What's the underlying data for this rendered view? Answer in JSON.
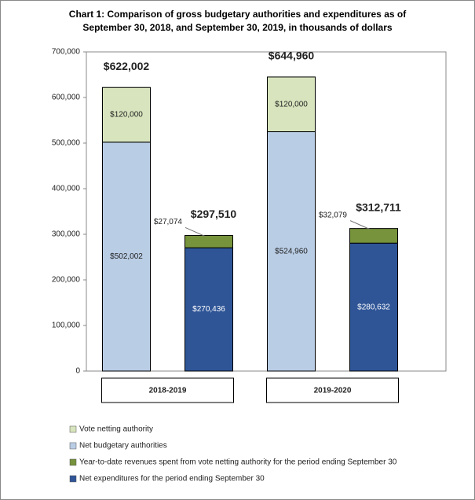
{
  "chart_data": {
    "type": "stacked-bar",
    "title": "Chart 1: Comparison of gross budgetary authorities and expenditures as of September 30, 2018, and September 30, 2019, in thousands of dollars",
    "categories": [
      null,
      null,
      null,
      null
    ],
    "groups": [
      "2018-2019",
      "2019-2020"
    ],
    "series": [
      {
        "name": "Vote netting authority",
        "color": "#d7e4bd",
        "values": [
          120000,
          null,
          120000,
          null
        ],
        "value_labels": [
          "$120,000",
          null,
          "$120,000",
          null
        ]
      },
      {
        "name": "Net budgetary authorities",
        "color": "#b9cde5",
        "values": [
          502002,
          null,
          524960,
          null
        ],
        "value_labels": [
          "$502,002",
          null,
          "$524,960",
          null
        ]
      },
      {
        "name": "Year-to-date revenues spent from vote netting authority for the period ending September 30",
        "color": "#77933c",
        "values": [
          null,
          27074,
          null,
          32079
        ],
        "value_labels": [
          null,
          "$27,074",
          null,
          "$32,079"
        ]
      },
      {
        "name": "Net expenditures for the period ending September 30",
        "color": "#2f5597",
        "values": [
          null,
          270436,
          null,
          280632
        ],
        "value_labels": [
          null,
          "$270,436",
          null,
          "$280,632"
        ]
      }
    ],
    "totals": {
      "values": [
        622002,
        297510,
        644960,
        312711
      ],
      "value_labels": [
        "$622,002",
        "$297,510",
        "$644,960",
        "$312,711"
      ]
    },
    "ylim": [
      0,
      700000
    ],
    "yticks": [
      {
        "value": 0,
        "label": "0"
      },
      {
        "value": 100000,
        "label": "100,000"
      },
      {
        "value": 200000,
        "label": "200,000"
      },
      {
        "value": 300000,
        "label": "300,000"
      },
      {
        "value": 400000,
        "label": "400,000"
      },
      {
        "value": 500000,
        "label": "500,000"
      },
      {
        "value": 600000,
        "label": "600,000"
      },
      {
        "value": 700000,
        "label": "700,000"
      }
    ],
    "legend": "bottom"
  }
}
